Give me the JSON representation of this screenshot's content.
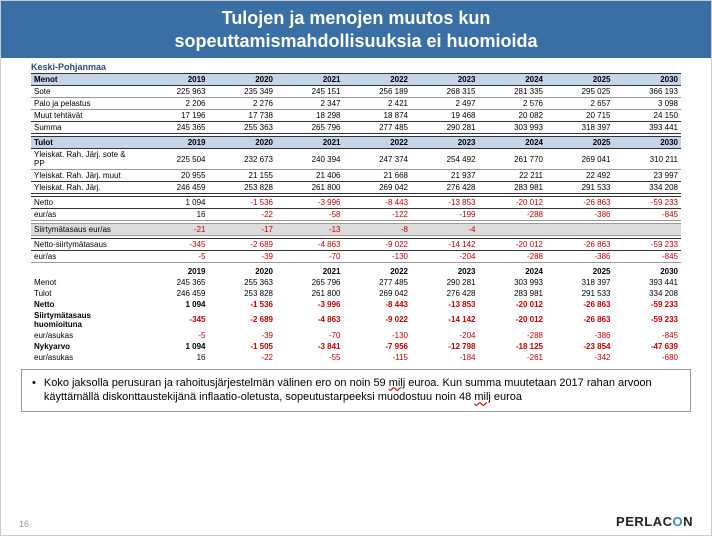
{
  "title_line1": "Tulojen ja menojen muutos kun",
  "title_line2": "sopeuttamismahdollisuuksia ei huomioida",
  "region": "Keski-Pohjanmaa",
  "years": [
    "2019",
    "2020",
    "2021",
    "2022",
    "2023",
    "2024",
    "2025",
    "2030"
  ],
  "menot_header": "Menot",
  "menot_rows": [
    {
      "label": "Sote",
      "v": [
        "225 963",
        "235 349",
        "245 151",
        "256 189",
        "268 315",
        "281 335",
        "295 025",
        "366 193"
      ]
    },
    {
      "label": "Palo ja pelastus",
      "v": [
        "2 206",
        "2 276",
        "2 347",
        "2 421",
        "2 497",
        "2 576",
        "2 657",
        "3 098"
      ]
    },
    {
      "label": "Muut tehtävät",
      "v": [
        "17 196",
        "17 738",
        "18 298",
        "18 874",
        "19 468",
        "20 082",
        "20 715",
        "24 150"
      ]
    }
  ],
  "menot_sum": {
    "label": "Summa",
    "v": [
      "245 365",
      "255 363",
      "265 796",
      "277 485",
      "290 281",
      "303 993",
      "318 397",
      "393 441"
    ]
  },
  "tulot_header": "Tulot",
  "tulot_rows": [
    {
      "label": "Yleiskat. Rah. Järj. sote & PP",
      "v": [
        "225 504",
        "232 673",
        "240 394",
        "247 374",
        "254 492",
        "261 770",
        "269 041",
        "310 211"
      ]
    },
    {
      "label": "Yleiskat. Rah. Järj. muut",
      "v": [
        "20 955",
        "21 155",
        "21 406",
        "21 668",
        "21 937",
        "22 211",
        "22 492",
        "23 997"
      ]
    }
  ],
  "tulot_sum": {
    "label": "Yleiskat. Rah. Järj.",
    "v": [
      "246 459",
      "253 828",
      "261 800",
      "269 042",
      "276 428",
      "283 981",
      "291 533",
      "334 208"
    ]
  },
  "netto": {
    "label": "Netto",
    "v": [
      "1 094",
      "-1 536",
      "-3 996",
      "-8 443",
      "-13 853",
      "-20 012",
      "-26 863",
      "-59 233"
    ]
  },
  "euras1": {
    "label": "eur/as",
    "v": [
      "16",
      "-22",
      "-58",
      "-122",
      "-199",
      "-288",
      "-386",
      "-845"
    ]
  },
  "siirt": {
    "label": "Siirtymätasaus eur/as",
    "v": [
      "-21",
      "-17",
      "-13",
      "-8",
      "-4",
      "",
      "",
      ""
    ]
  },
  "netto_siirt": {
    "label": "Netto-siirtymätasaus",
    "v": [
      "-345",
      "-2 689",
      "-4 863",
      "-9 022",
      "-14 142",
      "-20 012",
      "-26 863",
      "-59 233"
    ]
  },
  "euras2": {
    "label": "eur/as",
    "v": [
      "-5",
      "-39",
      "-70",
      "-130",
      "-204",
      "-288",
      "-386",
      "-845"
    ]
  },
  "summary_rows": [
    {
      "label": "Menot",
      "v": [
        "245 365",
        "255 363",
        "265 796",
        "277 485",
        "290 281",
        "303 993",
        "318 397",
        "393 441"
      ],
      "bold": false
    },
    {
      "label": "Tulot",
      "v": [
        "246 459",
        "253 828",
        "261 800",
        "269 042",
        "276 428",
        "283 981",
        "291 533",
        "334 208"
      ],
      "bold": false
    },
    {
      "label": "Netto",
      "v": [
        "1 094",
        "-1 536",
        "-3 996",
        "-8 443",
        "-13 853",
        "-20 012",
        "-26 863",
        "-59 233"
      ],
      "bold": true
    },
    {
      "label": "Siirtymätasaus huomioituna",
      "v": [
        "-345",
        "-2 689",
        "-4 863",
        "-9 022",
        "-14 142",
        "-20 012",
        "-26 863",
        "-59 233"
      ],
      "bold": true
    },
    {
      "label": "eur/asukas",
      "v": [
        "-5",
        "-39",
        "-70",
        "-130",
        "-204",
        "-288",
        "-386",
        "-845"
      ],
      "bold": false
    },
    {
      "label": "Nykyarvo",
      "v": [
        "1 094",
        "-1 505",
        "-3 841",
        "-7 956",
        "-12 798",
        "-18 125",
        "-23 854",
        "-47 639"
      ],
      "bold": true
    },
    {
      "label": "eur/asukas",
      "v": [
        "16",
        "-22",
        "-55",
        "-115",
        "-184",
        "-261",
        "-342",
        "-680"
      ],
      "bold": false
    }
  ],
  "bullet": "Koko jaksolla perusuran ja rahoitusjärjestelmän välinen ero on noin 59 milj euroa. Kun summa muutetaan 2017 rahan arvoon käyttämällä diskonttaustekijänä inflaatio-oletusta, sopeutustarpeeksi muodostuu noin 48 milj euroa",
  "page_number": "16",
  "logo_text": "PERLAC",
  "logo_o": "O",
  "logo_n": "N",
  "colors": {
    "header_bg": "#3a6fa6",
    "table_header_bg": "#c5d4e6",
    "neg": "#c00000",
    "grey": "#dcdcdc"
  }
}
